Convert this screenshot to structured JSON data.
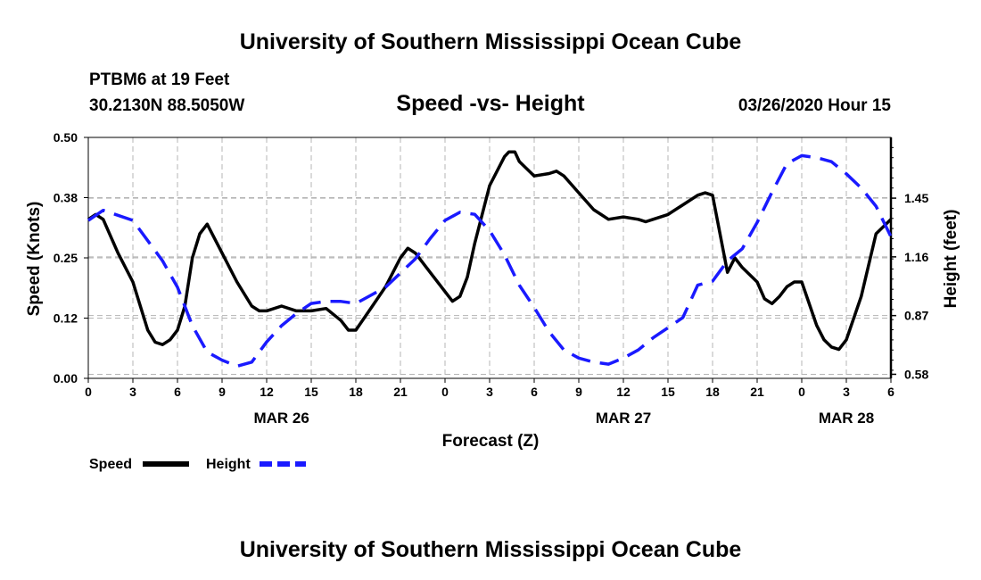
{
  "page": {
    "title_top": "University of Southern Mississippi Ocean Cube",
    "title_bottom": "University of Southern Mississippi Ocean Cube",
    "station": "PTBM6 at 19 Feet",
    "coords": "30.2130N 88.5050W",
    "timestamp": "03/26/2020 Hour 15"
  },
  "colors": {
    "speed": "#000000",
    "height": "#1a1aff",
    "grid": "#b4b4b4"
  },
  "chart_data": {
    "type": "line",
    "title": "Speed -vs- Height",
    "xlabel": "Forecast (Z)",
    "ylabel_left": "Speed (Knots)",
    "ylabel_right": "Height (feet)",
    "x_range_hours": [
      0,
      54
    ],
    "x_ticks": [
      0,
      3,
      6,
      9,
      12,
      15,
      18,
      21,
      24,
      27,
      30,
      33,
      36,
      39,
      42,
      45,
      48,
      51,
      54
    ],
    "x_tick_labels": [
      "0",
      "3",
      "6",
      "9",
      "12",
      "15",
      "18",
      "21",
      "0",
      "3",
      "6",
      "9",
      "12",
      "15",
      "18",
      "21",
      "0",
      "3",
      "6"
    ],
    "date_labels": [
      {
        "hour": 13,
        "text": "MAR 26"
      },
      {
        "hour": 36,
        "text": "MAR 27"
      },
      {
        "hour": 51,
        "text": "MAR 28"
      }
    ],
    "left_axis": {
      "range": [
        0,
        0.5
      ],
      "ticks": [
        0,
        0.125,
        0.25,
        0.375,
        0.5
      ],
      "tick_labels": [
        "0.00",
        "0.12",
        "0.25",
        "0.38",
        "0.50"
      ]
    },
    "right_axis": {
      "range": [
        0.56,
        1.75
      ],
      "ticks": [
        0.58,
        0.87,
        1.16,
        1.45
      ],
      "tick_labels": [
        "0.58",
        "0.87",
        "1.16",
        "1.45"
      ]
    },
    "legend": [
      {
        "key": "speed",
        "label": "Speed"
      },
      {
        "key": "height",
        "label": "Height"
      }
    ],
    "series": [
      {
        "name": "Speed",
        "axis": "left",
        "style": "solid",
        "x": [
          0,
          0.5,
          1,
          2,
          3,
          4,
          4.5,
          5,
          5.5,
          6,
          6.5,
          7,
          7.5,
          8,
          9,
          10,
          11,
          11.5,
          12,
          13,
          14,
          15,
          16,
          17,
          17.5,
          18,
          19,
          20,
          21,
          21.5,
          22,
          23,
          24,
          24.5,
          25,
          25.5,
          26,
          27,
          28,
          28.3,
          28.7,
          29,
          30,
          31,
          31.5,
          32,
          33,
          34,
          34.5,
          35,
          36,
          37,
          37.5,
          38,
          39,
          40,
          41,
          41.5,
          42,
          43,
          43.5,
          44,
          45,
          45.5,
          46,
          46.5,
          47,
          47.5,
          48,
          49,
          49.5,
          50,
          50.5,
          51,
          52,
          53,
          54
        ],
        "y": [
          0.33,
          0.34,
          0.33,
          0.26,
          0.2,
          0.1,
          0.075,
          0.07,
          0.08,
          0.1,
          0.15,
          0.25,
          0.3,
          0.32,
          0.26,
          0.2,
          0.15,
          0.14,
          0.14,
          0.15,
          0.14,
          0.14,
          0.145,
          0.12,
          0.1,
          0.1,
          0.145,
          0.19,
          0.25,
          0.27,
          0.26,
          0.22,
          0.18,
          0.16,
          0.17,
          0.21,
          0.28,
          0.4,
          0.46,
          0.47,
          0.47,
          0.45,
          0.42,
          0.425,
          0.43,
          0.42,
          0.385,
          0.35,
          0.34,
          0.33,
          0.335,
          0.33,
          0.325,
          0.33,
          0.34,
          0.36,
          0.38,
          0.385,
          0.38,
          0.22,
          0.25,
          0.23,
          0.2,
          0.165,
          0.155,
          0.17,
          0.19,
          0.2,
          0.2,
          0.11,
          0.08,
          0.065,
          0.06,
          0.08,
          0.17,
          0.3,
          0.33
        ]
      },
      {
        "name": "Height",
        "axis": "right",
        "style": "dashed",
        "x": [
          0,
          1,
          3,
          5,
          6,
          7,
          8,
          9,
          10,
          11,
          12,
          13,
          14,
          15,
          16,
          17,
          18,
          19,
          20,
          21,
          22,
          23,
          24,
          25,
          26,
          27,
          28,
          29,
          30,
          31,
          32,
          33,
          34,
          35,
          36,
          37,
          38,
          39,
          40,
          41,
          42,
          43,
          44,
          45,
          46,
          47,
          48,
          49,
          50,
          51,
          52,
          53,
          54
        ],
        "y": [
          1.34,
          1.39,
          1.34,
          1.14,
          1.01,
          0.82,
          0.69,
          0.65,
          0.62,
          0.64,
          0.74,
          0.82,
          0.88,
          0.93,
          0.94,
          0.94,
          0.93,
          0.97,
          1.01,
          1.08,
          1.15,
          1.25,
          1.34,
          1.38,
          1.37,
          1.29,
          1.17,
          1.02,
          0.91,
          0.79,
          0.7,
          0.66,
          0.64,
          0.63,
          0.66,
          0.7,
          0.76,
          0.81,
          0.86,
          1.02,
          1.04,
          1.14,
          1.2,
          1.33,
          1.48,
          1.62,
          1.66,
          1.65,
          1.63,
          1.57,
          1.5,
          1.41,
          1.26
        ]
      }
    ]
  }
}
